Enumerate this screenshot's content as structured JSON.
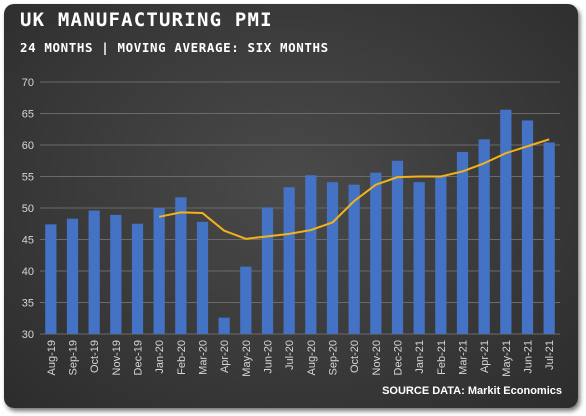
{
  "title": "UK MANUFACTURING PMI",
  "subtitle": "24 MONTHS | MOVING AVERAGE: SIX MONTHS",
  "source": "SOURCE DATA: Markit Economics",
  "colors": {
    "bar": "#4472c4",
    "line": "#f2b318",
    "grid": "#6a6a6a"
  },
  "chart_data": {
    "type": "bar",
    "categories": [
      "Aug-19",
      "Sep-19",
      "Oct-19",
      "Nov-19",
      "Dec-19",
      "Jan-20",
      "Feb-20",
      "Mar-20",
      "Apr-20",
      "May-20",
      "Jun-20",
      "Jul-20",
      "Aug-20",
      "Sep-20",
      "Oct-20",
      "Nov-20",
      "Dec-20",
      "Jan-21",
      "Feb-21",
      "Mar-21",
      "Apr-21",
      "May-21",
      "Jun-21",
      "Jul-21"
    ],
    "series": [
      {
        "type": "bar",
        "values": [
          47.4,
          48.3,
          49.6,
          48.9,
          47.5,
          50.0,
          51.7,
          47.8,
          32.6,
          40.7,
          50.1,
          53.3,
          55.2,
          54.1,
          53.7,
          55.6,
          57.5,
          54.1,
          55.1,
          58.9,
          60.9,
          65.6,
          63.9,
          60.4
        ]
      },
      {
        "type": "line",
        "values": [
          null,
          null,
          null,
          null,
          null,
          48.6,
          49.3,
          49.2,
          46.4,
          45.1,
          45.5,
          45.9,
          46.5,
          47.7,
          51.1,
          53.7,
          54.9,
          55.0,
          55.0,
          55.8,
          57.1,
          58.7,
          59.8,
          60.9
        ]
      }
    ],
    "ylim": [
      30,
      70
    ],
    "yticks": [
      30,
      35,
      40,
      45,
      50,
      55,
      60,
      65,
      70
    ],
    "grid": true
  }
}
